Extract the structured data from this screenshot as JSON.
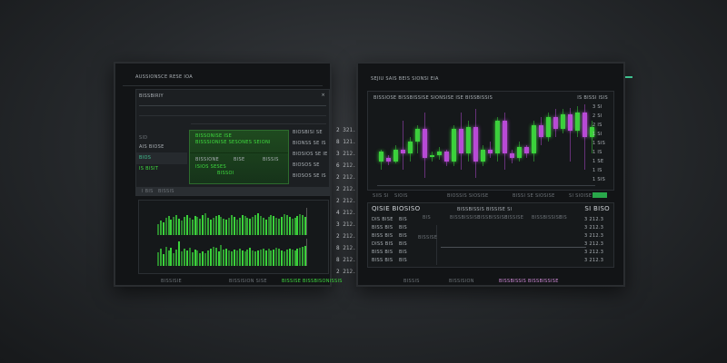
{
  "left": {
    "title": "AUSSIONSCE RESE IOA",
    "panel_title": "BISSBIRIY",
    "rows": [
      "SID",
      "AIS BIOSE",
      "BIOS",
      "IS BISIT"
    ],
    "card": {
      "title": "BISSONISE ISE",
      "line2": "BISSSIONISE SESONES SEIONI",
      "label1": "BISSIONE",
      "label2": "BISE",
      "label3": "BISSIS",
      "line3": "ISIOS SESES",
      "line4": "BISSOI"
    },
    "side_values": [
      "BIOSBISI SE",
      "BIONSS SE IS",
      "BIOSIOS SE IE",
      "BIOSOS SE",
      "BIOSOS SE IS"
    ],
    "tab_labels": [
      "I BIS",
      "BISSIS"
    ],
    "chart_top_values": [
      40,
      55,
      48,
      62,
      70,
      58,
      66,
      72,
      60,
      55,
      68,
      75,
      64,
      58,
      70,
      66,
      60,
      72,
      80,
      65,
      58,
      62,
      70,
      74,
      68,
      60,
      56,
      64,
      72,
      66,
      58,
      62,
      75,
      70,
      64,
      60,
      66,
      72,
      80,
      70,
      62,
      58,
      66,
      74,
      70,
      64,
      60,
      68,
      76,
      72,
      66,
      60,
      64,
      70,
      78,
      72,
      68
    ],
    "chart_bottom_values": [
      50,
      62,
      45,
      70,
      58,
      66,
      48,
      60,
      90,
      55,
      62,
      58,
      66,
      50,
      60,
      56,
      48,
      52,
      46,
      58,
      62,
      70,
      66,
      54,
      78,
      60,
      64,
      58,
      52,
      60,
      56,
      62,
      58,
      54,
      60,
      66,
      58,
      52,
      56,
      60,
      64,
      58,
      62,
      56,
      60,
      66,
      62,
      58,
      54,
      60,
      64,
      60,
      56,
      62,
      66,
      70,
      74
    ],
    "footer": [
      "BISSISIE",
      "BISSISION SISE",
      "BISSISE BISSBISONISSIS"
    ]
  },
  "middle_values": [
    "2 321.3",
    "8 121.3",
    "3 212.3",
    "6 212.3",
    "2 212.3",
    "2 212.3",
    "2 212.3",
    "4 212.3",
    "3 212.3",
    "2 212.3",
    "8 212.3",
    "8 212.3",
    "2 212.3"
  ],
  "right": {
    "title": "SEJIU SAIS BEIS SIONSI EIA",
    "chart_title": "BISSIOSE BISSBISSISE SIONSISE ISE BISSBISSIS",
    "chart_badge": "IS BISSI ISIS",
    "axis_labels": [
      "3 SI",
      "2 SI",
      "2 IS",
      "1 SI",
      "1 SIS",
      "1 IS",
      "1 SE",
      "1 IS",
      "1 SIS"
    ],
    "candles": [
      [
        30,
        42,
        20,
        45
      ],
      [
        34,
        30,
        25,
        38
      ],
      [
        30,
        45,
        28,
        50
      ],
      [
        45,
        40,
        20,
        80
      ],
      [
        40,
        55,
        30,
        60
      ],
      [
        55,
        70,
        40,
        75
      ],
      [
        70,
        35,
        10,
        90
      ],
      [
        35,
        38,
        30,
        42
      ],
      [
        38,
        42,
        32,
        48
      ],
      [
        42,
        30,
        25,
        45
      ],
      [
        30,
        70,
        25,
        75
      ],
      [
        70,
        40,
        20,
        90
      ],
      [
        40,
        72,
        30,
        80
      ],
      [
        72,
        30,
        10,
        95
      ],
      [
        30,
        45,
        25,
        50
      ],
      [
        45,
        40,
        35,
        55
      ],
      [
        40,
        80,
        30,
        85
      ],
      [
        80,
        40,
        20,
        90
      ],
      [
        40,
        34,
        28,
        45
      ],
      [
        34,
        48,
        30,
        55
      ],
      [
        48,
        40,
        35,
        50
      ],
      [
        40,
        75,
        30,
        80
      ],
      [
        75,
        60,
        50,
        85
      ],
      [
        60,
        85,
        55,
        90
      ],
      [
        85,
        70,
        60,
        95
      ],
      [
        70,
        88,
        65,
        95
      ],
      [
        88,
        68,
        30,
        96
      ],
      [
        68,
        90,
        60,
        98
      ],
      [
        90,
        60,
        20,
        100
      ],
      [
        60,
        72,
        40,
        80
      ]
    ],
    "toolbar": [
      "SIIS SI",
      "SIOIS",
      "BIOSSIS SIOSISE",
      "BISSI SE SIOSISE",
      "SI SIOISE"
    ],
    "toolbar_button": "BISSE",
    "table_title": "QISIE BIOSISO",
    "table_mid_title": "BISSBISSIS BISSISE SI",
    "table_right_title": "SI BISO",
    "table_headers": [
      "BIS",
      "BISSBISSISE",
      "BISSBISSISE",
      "BISSISE",
      "BISSBISSISE",
      "BIS"
    ],
    "table_rows": [
      [
        "DIS BISE",
        "BIS",
        "3 212.3"
      ],
      [
        "BISS BIS",
        "BIS",
        "3 212.3"
      ],
      [
        "BISS BIS",
        "BIS",
        "3 212.3"
      ],
      [
        "DISS BIS",
        "BIS",
        "3 212.3"
      ],
      [
        "BISS BIS",
        "BIS",
        "3 212.3"
      ],
      [
        "BISS BIS",
        "BIS",
        "3 212.3"
      ]
    ],
    "table_note": "BISSISE",
    "footer": [
      "BISSIS",
      "BISSISION",
      "BISSBISSIS BISSBISSISE"
    ]
  },
  "colors": {
    "up": "#3bd13b",
    "down": "#b84ad6",
    "accent": "#29a84a"
  }
}
